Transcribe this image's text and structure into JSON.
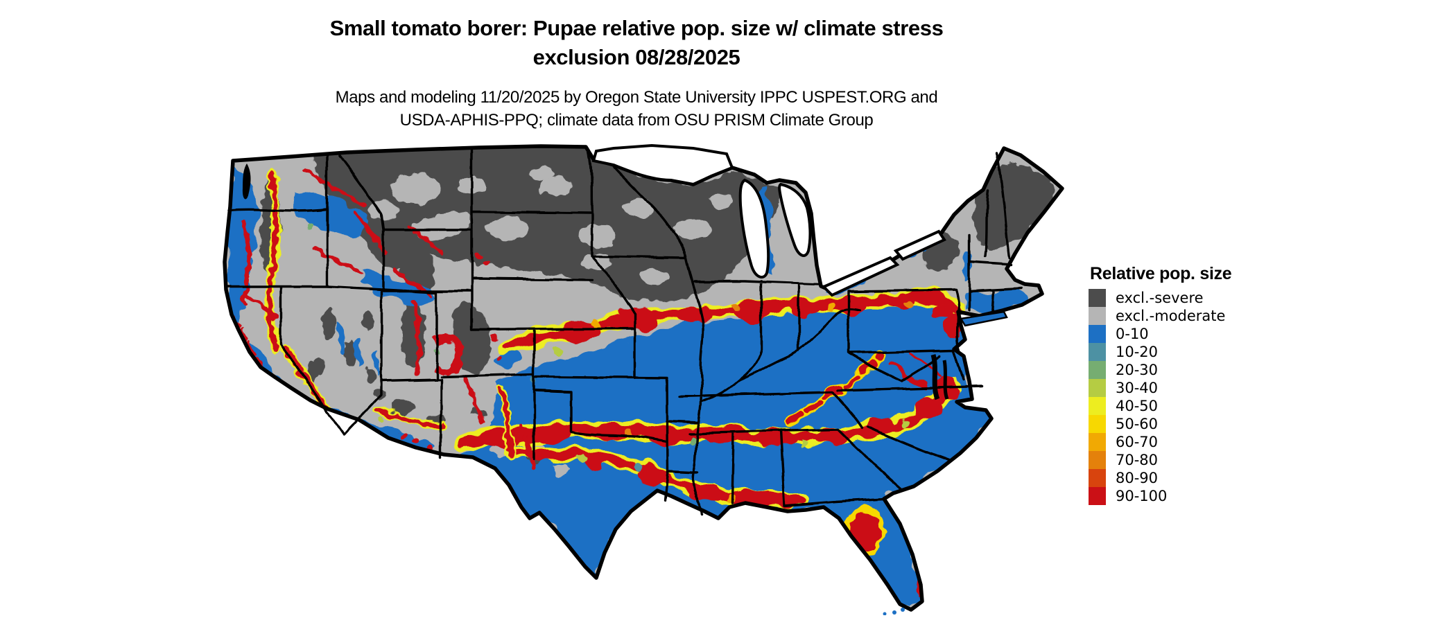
{
  "title": {
    "line1": "Small tomato borer: Pupae relative pop. size w/ climate stress",
    "line2": "exclusion 08/28/2025"
  },
  "subtitle": {
    "line1": "Maps and modeling 11/20/2025 by Oregon State University IPPC USPEST.ORG and",
    "line2": "USDA-APHIS-PPQ; climate data from OSU PRISM Climate Group"
  },
  "map": {
    "area": "Contiguous United States",
    "kind": "pest population climate-stress choropleth raster with state borders"
  },
  "legend": {
    "title": "Relative pop. size",
    "entries": [
      {
        "key": "severe",
        "label": "excl.-severe",
        "color": "#4c4c4c"
      },
      {
        "key": "moderate",
        "label": "excl.-moderate",
        "color": "#b5b5b5"
      },
      {
        "key": "b0",
        "label": "0-10",
        "color": "#1d70c4"
      },
      {
        "key": "b10",
        "label": "10-20",
        "color": "#4d91a3"
      },
      {
        "key": "b20",
        "label": "20-30",
        "color": "#76ad71"
      },
      {
        "key": "b30",
        "label": "30-40",
        "color": "#b5cc43"
      },
      {
        "key": "b40",
        "label": "40-50",
        "color": "#eded20"
      },
      {
        "key": "b50",
        "label": "50-60",
        "color": "#f7d801"
      },
      {
        "key": "b60",
        "label": "60-70",
        "color": "#f1a903"
      },
      {
        "key": "b70",
        "label": "70-80",
        "color": "#e4810b"
      },
      {
        "key": "b80",
        "label": "80-90",
        "color": "#d8440e"
      },
      {
        "key": "b90",
        "label": "90-100",
        "color": "#cb1016"
      }
    ]
  }
}
